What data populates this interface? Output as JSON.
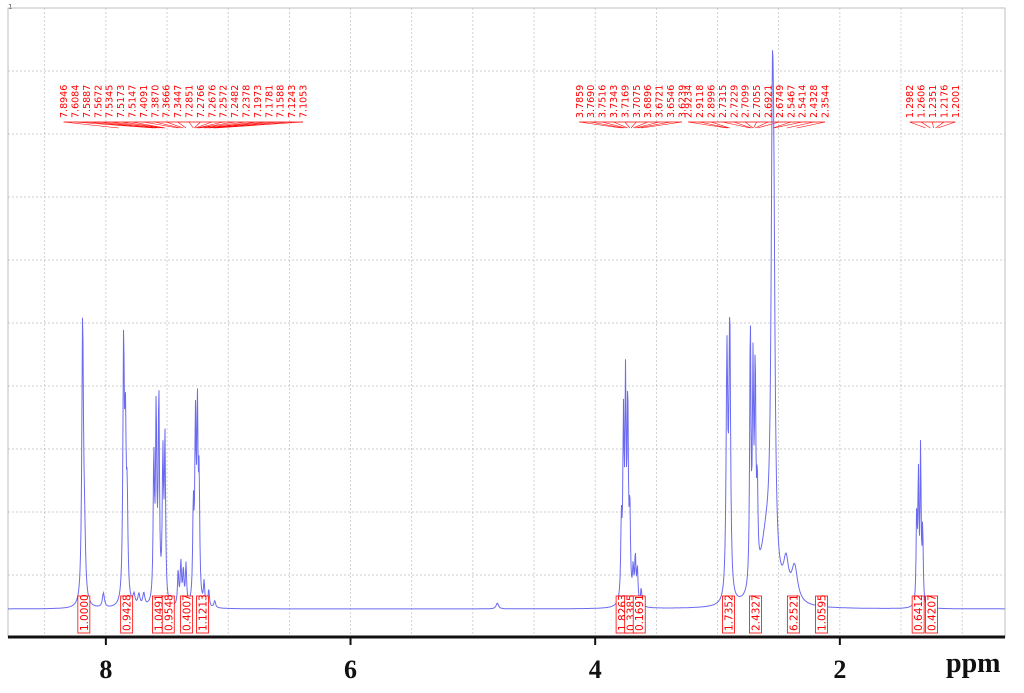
{
  "chart_data": {
    "type": "line",
    "corner_mark": "1",
    "xlabel": "ppm",
    "x_ticks": [
      "8",
      "6",
      "4",
      "2"
    ],
    "xlim": [
      8.8,
      0.65
    ],
    "ylim": [
      0,
      1
    ],
    "grid": true,
    "colors": {
      "spectrum": "#6b6bef",
      "labels": "#ff0000",
      "axis": "#111111",
      "grid": "#bfbfbf"
    },
    "peak_labels": [
      {
        "ppm": 7.8946,
        "text": "7.8946"
      },
      {
        "ppm": 7.6084,
        "text": "7.6084"
      },
      {
        "ppm": 7.5887,
        "text": "7.5887"
      },
      {
        "ppm": 7.5672,
        "text": "7.5672"
      },
      {
        "ppm": 7.5345,
        "text": "7.5345"
      },
      {
        "ppm": 7.5173,
        "text": "7.5173"
      },
      {
        "ppm": 7.5147,
        "text": "7.5147"
      },
      {
        "ppm": 7.4091,
        "text": "7.4091"
      },
      {
        "ppm": 7.387,
        "text": "7.3870"
      },
      {
        "ppm": 7.3666,
        "text": "7.3666"
      },
      {
        "ppm": 7.3447,
        "text": "7.3447"
      },
      {
        "ppm": 7.2851,
        "text": "7.2851"
      },
      {
        "ppm": 7.2766,
        "text": "7.2766"
      },
      {
        "ppm": 7.2676,
        "text": "7.2676"
      },
      {
        "ppm": 7.2572,
        "text": "7.2572"
      },
      {
        "ppm": 7.2482,
        "text": "7.2482"
      },
      {
        "ppm": 7.2378,
        "text": "7.2378"
      },
      {
        "ppm": 7.1973,
        "text": "7.1973"
      },
      {
        "ppm": 7.1781,
        "text": "7.1781"
      },
      {
        "ppm": 7.1588,
        "text": "7.1588"
      },
      {
        "ppm": 7.1243,
        "text": "7.1243"
      },
      {
        "ppm": 7.1053,
        "text": "7.1053"
      },
      {
        "ppm": 3.7859,
        "text": "3.7859"
      },
      {
        "ppm": 3.769,
        "text": "3.7690"
      },
      {
        "ppm": 3.7516,
        "text": "3.7516"
      },
      {
        "ppm": 3.7343,
        "text": "3.7343"
      },
      {
        "ppm": 3.7169,
        "text": "3.7169"
      },
      {
        "ppm": 3.7075,
        "text": "3.7075"
      },
      {
        "ppm": 3.6896,
        "text": "3.6896"
      },
      {
        "ppm": 3.6721,
        "text": "3.6721"
      },
      {
        "ppm": 3.6546,
        "text": "3.6546"
      },
      {
        "ppm": 3.6239,
        "text": "3.6239"
      },
      {
        "ppm": 2.9234,
        "text": "2.9234"
      },
      {
        "ppm": 2.9118,
        "text": "2.9118"
      },
      {
        "ppm": 2.8996,
        "text": "2.8996"
      },
      {
        "ppm": 2.7315,
        "text": "2.7315"
      },
      {
        "ppm": 2.7229,
        "text": "2.7229"
      },
      {
        "ppm": 2.7099,
        "text": "2.7099"
      },
      {
        "ppm": 2.7055,
        "text": "2.7055"
      },
      {
        "ppm": 2.6921,
        "text": "2.6921"
      },
      {
        "ppm": 2.6749,
        "text": "2.6749"
      },
      {
        "ppm": 2.5467,
        "text": "2.5467"
      },
      {
        "ppm": 2.5414,
        "text": "2.5414"
      },
      {
        "ppm": 2.4328,
        "text": "2.4328"
      },
      {
        "ppm": 2.3544,
        "text": "2.3544"
      },
      {
        "ppm": 1.2982,
        "text": "1.2982"
      },
      {
        "ppm": 1.2606,
        "text": "1.2606"
      },
      {
        "ppm": 1.2351,
        "text": "1.2351"
      },
      {
        "ppm": 1.2176,
        "text": "1.2176"
      },
      {
        "ppm": 1.2001,
        "text": "1.2001"
      }
    ],
    "integrals": [
      {
        "ppm": 8.18,
        "text": "1.0000"
      },
      {
        "ppm": 7.83,
        "text": "0.9428"
      },
      {
        "ppm": 7.57,
        "text": "1.0491"
      },
      {
        "ppm": 7.49,
        "text": "0.9548"
      },
      {
        "ppm": 7.34,
        "text": "0.4007"
      },
      {
        "ppm": 7.21,
        "text": "1.1213"
      },
      {
        "ppm": 3.78,
        "text": "1.8263"
      },
      {
        "ppm": 3.71,
        "text": "0.3385"
      },
      {
        "ppm": 3.64,
        "text": "0.1691"
      },
      {
        "ppm": 2.91,
        "text": "1.7352"
      },
      {
        "ppm": 2.69,
        "text": "2.4327"
      },
      {
        "ppm": 2.38,
        "text": "6.2521"
      },
      {
        "ppm": 2.15,
        "text": "1.0595"
      },
      {
        "ppm": 1.36,
        "text": "0.6412"
      },
      {
        "ppm": 1.25,
        "text": "0.4207"
      }
    ],
    "series": [
      {
        "peaks": [
          {
            "ppm": 8.19,
            "h": 0.488,
            "w": 0.008
          },
          {
            "ppm": 8.175,
            "h": 0.1,
            "w": 0.01
          },
          {
            "ppm": 7.855,
            "h": 0.44,
            "w": 0.007
          },
          {
            "ppm": 7.84,
            "h": 0.27,
            "w": 0.007
          },
          {
            "ppm": 7.826,
            "h": 0.16,
            "w": 0.007
          },
          {
            "ppm": 8.02,
            "h": 0.025,
            "w": 0.01
          },
          {
            "ppm": 7.77,
            "h": 0.018,
            "w": 0.01
          },
          {
            "ppm": 7.73,
            "h": 0.02,
            "w": 0.01
          },
          {
            "ppm": 7.69,
            "h": 0.022,
            "w": 0.01
          },
          {
            "ppm": 7.608,
            "h": 0.25,
            "w": 0.006
          },
          {
            "ppm": 7.589,
            "h": 0.33,
            "w": 0.006
          },
          {
            "ppm": 7.567,
            "h": 0.36,
            "w": 0.006
          },
          {
            "ppm": 7.534,
            "h": 0.25,
            "w": 0.006
          },
          {
            "ppm": 7.517,
            "h": 0.28,
            "w": 0.006
          },
          {
            "ppm": 7.409,
            "h": 0.06,
            "w": 0.006
          },
          {
            "ppm": 7.387,
            "h": 0.075,
            "w": 0.006
          },
          {
            "ppm": 7.367,
            "h": 0.06,
            "w": 0.006
          },
          {
            "ppm": 7.345,
            "h": 0.07,
            "w": 0.006
          },
          {
            "ppm": 7.285,
            "h": 0.16,
            "w": 0.006
          },
          {
            "ppm": 7.268,
            "h": 0.3,
            "w": 0.006
          },
          {
            "ppm": 7.252,
            "h": 0.32,
            "w": 0.006
          },
          {
            "ppm": 7.238,
            "h": 0.2,
            "w": 0.006
          },
          {
            "ppm": 7.197,
            "h": 0.04,
            "w": 0.006
          },
          {
            "ppm": 7.159,
            "h": 0.03,
            "w": 0.006
          },
          {
            "ppm": 7.11,
            "h": 0.012,
            "w": 0.008
          },
          {
            "ppm": 4.8,
            "h": 0.01,
            "w": 0.012
          },
          {
            "ppm": 3.786,
            "h": 0.13,
            "w": 0.006
          },
          {
            "ppm": 3.769,
            "h": 0.3,
            "w": 0.006
          },
          {
            "ppm": 3.752,
            "h": 0.36,
            "w": 0.006
          },
          {
            "ppm": 3.734,
            "h": 0.34,
            "w": 0.006
          },
          {
            "ppm": 3.717,
            "h": 0.15,
            "w": 0.006
          },
          {
            "ppm": 3.69,
            "h": 0.055,
            "w": 0.006
          },
          {
            "ppm": 3.672,
            "h": 0.08,
            "w": 0.006
          },
          {
            "ppm": 3.655,
            "h": 0.06,
            "w": 0.006
          },
          {
            "ppm": 3.624,
            "h": 0.03,
            "w": 0.006
          },
          {
            "ppm": 2.923,
            "h": 0.42,
            "w": 0.008
          },
          {
            "ppm": 2.9,
            "h": 0.48,
            "w": 0.008
          },
          {
            "ppm": 2.732,
            "h": 0.46,
            "w": 0.006
          },
          {
            "ppm": 2.71,
            "h": 0.36,
            "w": 0.006
          },
          {
            "ppm": 2.692,
            "h": 0.36,
            "w": 0.006
          },
          {
            "ppm": 2.675,
            "h": 0.15,
            "w": 0.006
          },
          {
            "ppm": 2.552,
            "h": 0.66,
            "w": 0.012
          },
          {
            "ppm": 2.54,
            "h": 0.45,
            "w": 0.012
          },
          {
            "ppm": 2.6,
            "h": 0.11,
            "w": 0.06
          },
          {
            "ppm": 2.44,
            "h": 0.06,
            "w": 0.025
          },
          {
            "ppm": 2.37,
            "h": 0.06,
            "w": 0.03
          },
          {
            "ppm": 1.372,
            "h": 0.16,
            "w": 0.005
          },
          {
            "ppm": 1.358,
            "h": 0.22,
            "w": 0.005
          },
          {
            "ppm": 1.34,
            "h": 0.27,
            "w": 0.005
          },
          {
            "ppm": 1.323,
            "h": 0.13,
            "w": 0.005
          }
        ]
      }
    ]
  }
}
